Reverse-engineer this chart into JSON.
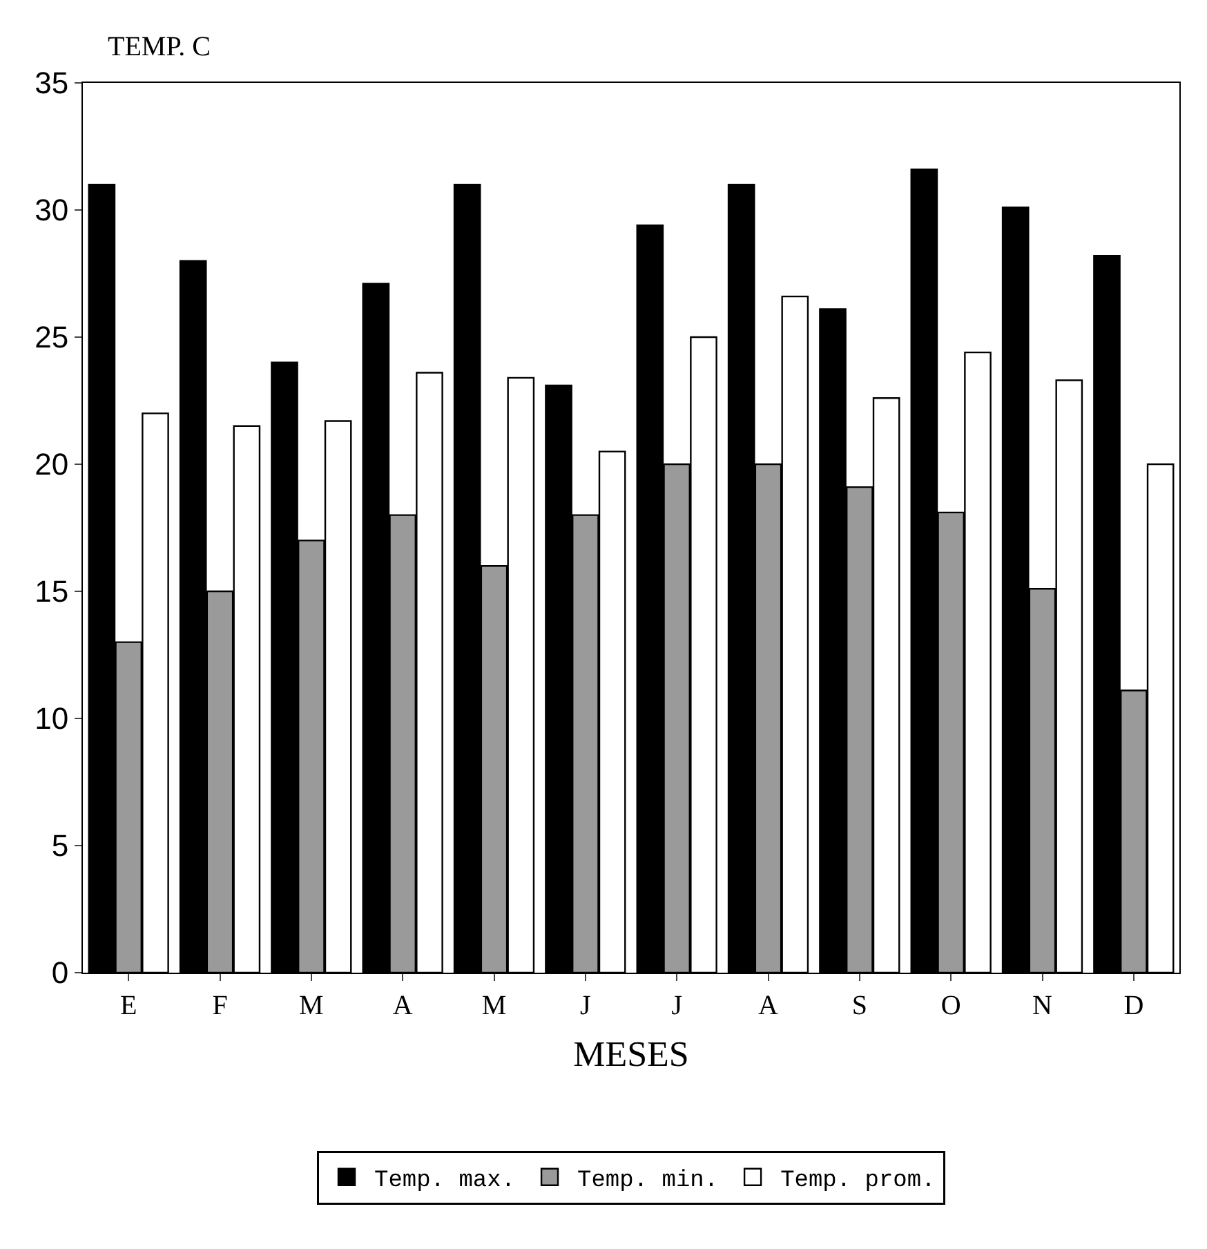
{
  "chart_data": {
    "type": "bar",
    "ylabel": "TEMP. C",
    "xlabel": "MESES",
    "categories": [
      "E",
      "F",
      "M",
      "A",
      "M",
      "J",
      "J",
      "A",
      "S",
      "O",
      "N",
      "D"
    ],
    "series": [
      {
        "name": "Temp. max.",
        "color": "#000000",
        "values": [
          31,
          28,
          24,
          27.1,
          31,
          23.1,
          29.4,
          31,
          26.1,
          31.6,
          30.1,
          28.2
        ]
      },
      {
        "name": "Temp. min.",
        "color": "#9a9a9a",
        "values": [
          13,
          15,
          17,
          18,
          16,
          18,
          20,
          20,
          19.1,
          18.1,
          15.1,
          11.1
        ]
      },
      {
        "name": "Temp. prom.",
        "color": "#ffffff",
        "values": [
          22,
          21.5,
          21.7,
          23.6,
          23.4,
          20.5,
          25,
          26.6,
          22.6,
          24.4,
          23.3,
          20
        ]
      }
    ],
    "ylim": [
      0,
      35
    ],
    "yticks": [
      0,
      5,
      10,
      15,
      20,
      25,
      30,
      35
    ],
    "legend": "bottom"
  }
}
